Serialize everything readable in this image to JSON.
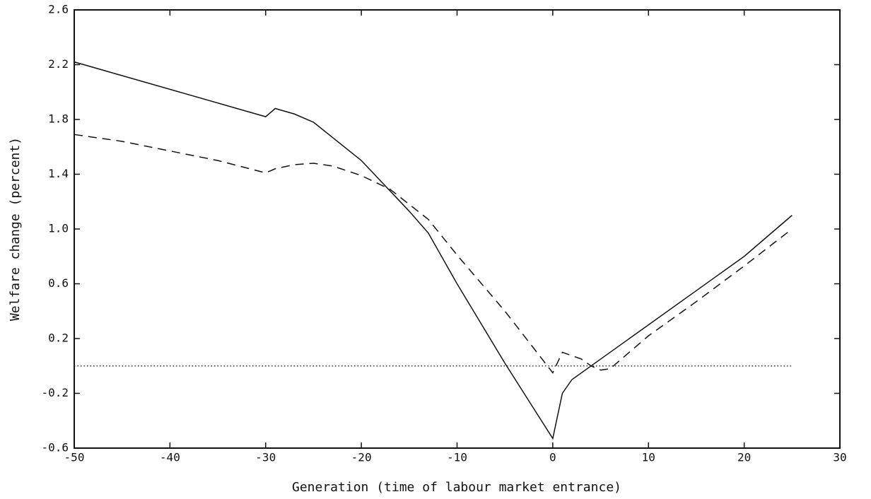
{
  "chart_data": {
    "type": "line",
    "xlabel": "Generation (time of labour market entrance)",
    "ylabel": "Welfare change (percent)",
    "xlim": [
      -50,
      30
    ],
    "ylim": [
      -0.6,
      2.6
    ],
    "xticks": [
      -50,
      -40,
      -30,
      -20,
      -10,
      0,
      10,
      20,
      30
    ],
    "yticks": [
      -0.6,
      -0.2,
      0.2,
      0.6,
      {
        "value": 1,
        "label": "1.0"
      },
      1.4,
      1.8,
      2.2,
      2.6
    ],
    "series": [
      {
        "color": "#111111",
        "dash": "solid",
        "x": [
          -50,
          -30,
          -29,
          -27,
          -25,
          -20,
          -15,
          -13,
          -10,
          -5,
          -3,
          0,
          1,
          2,
          5,
          10,
          15,
          20,
          25
        ],
        "values": [
          2.22,
          1.82,
          1.88,
          1.84,
          1.78,
          1.5,
          1.13,
          0.97,
          0.6,
          0.02,
          -0.2,
          -0.53,
          -0.2,
          -0.1,
          0.05,
          0.3,
          0.55,
          0.8,
          1.1
        ]
      },
      {
        "color": "#111111",
        "dash": "dashed",
        "x": [
          -50,
          -45,
          -40,
          -35,
          -30,
          -29,
          -27,
          -25,
          -23,
          -20,
          -17,
          -15,
          -13,
          -10,
          -5,
          0,
          1,
          3,
          4,
          5,
          6,
          10,
          15,
          20,
          25
        ],
        "values": [
          1.69,
          1.64,
          1.57,
          1.5,
          1.41,
          1.44,
          1.47,
          1.48,
          1.46,
          1.39,
          1.29,
          1.18,
          1.07,
          0.81,
          0.4,
          -0.05,
          0.1,
          0.05,
          0.0,
          -0.03,
          -0.02,
          0.22,
          0.47,
          0.73,
          1.0
        ]
      },
      {
        "color": "#333333",
        "dash": "dotted",
        "x": [
          -50,
          25
        ],
        "values": [
          0,
          0
        ]
      }
    ]
  }
}
